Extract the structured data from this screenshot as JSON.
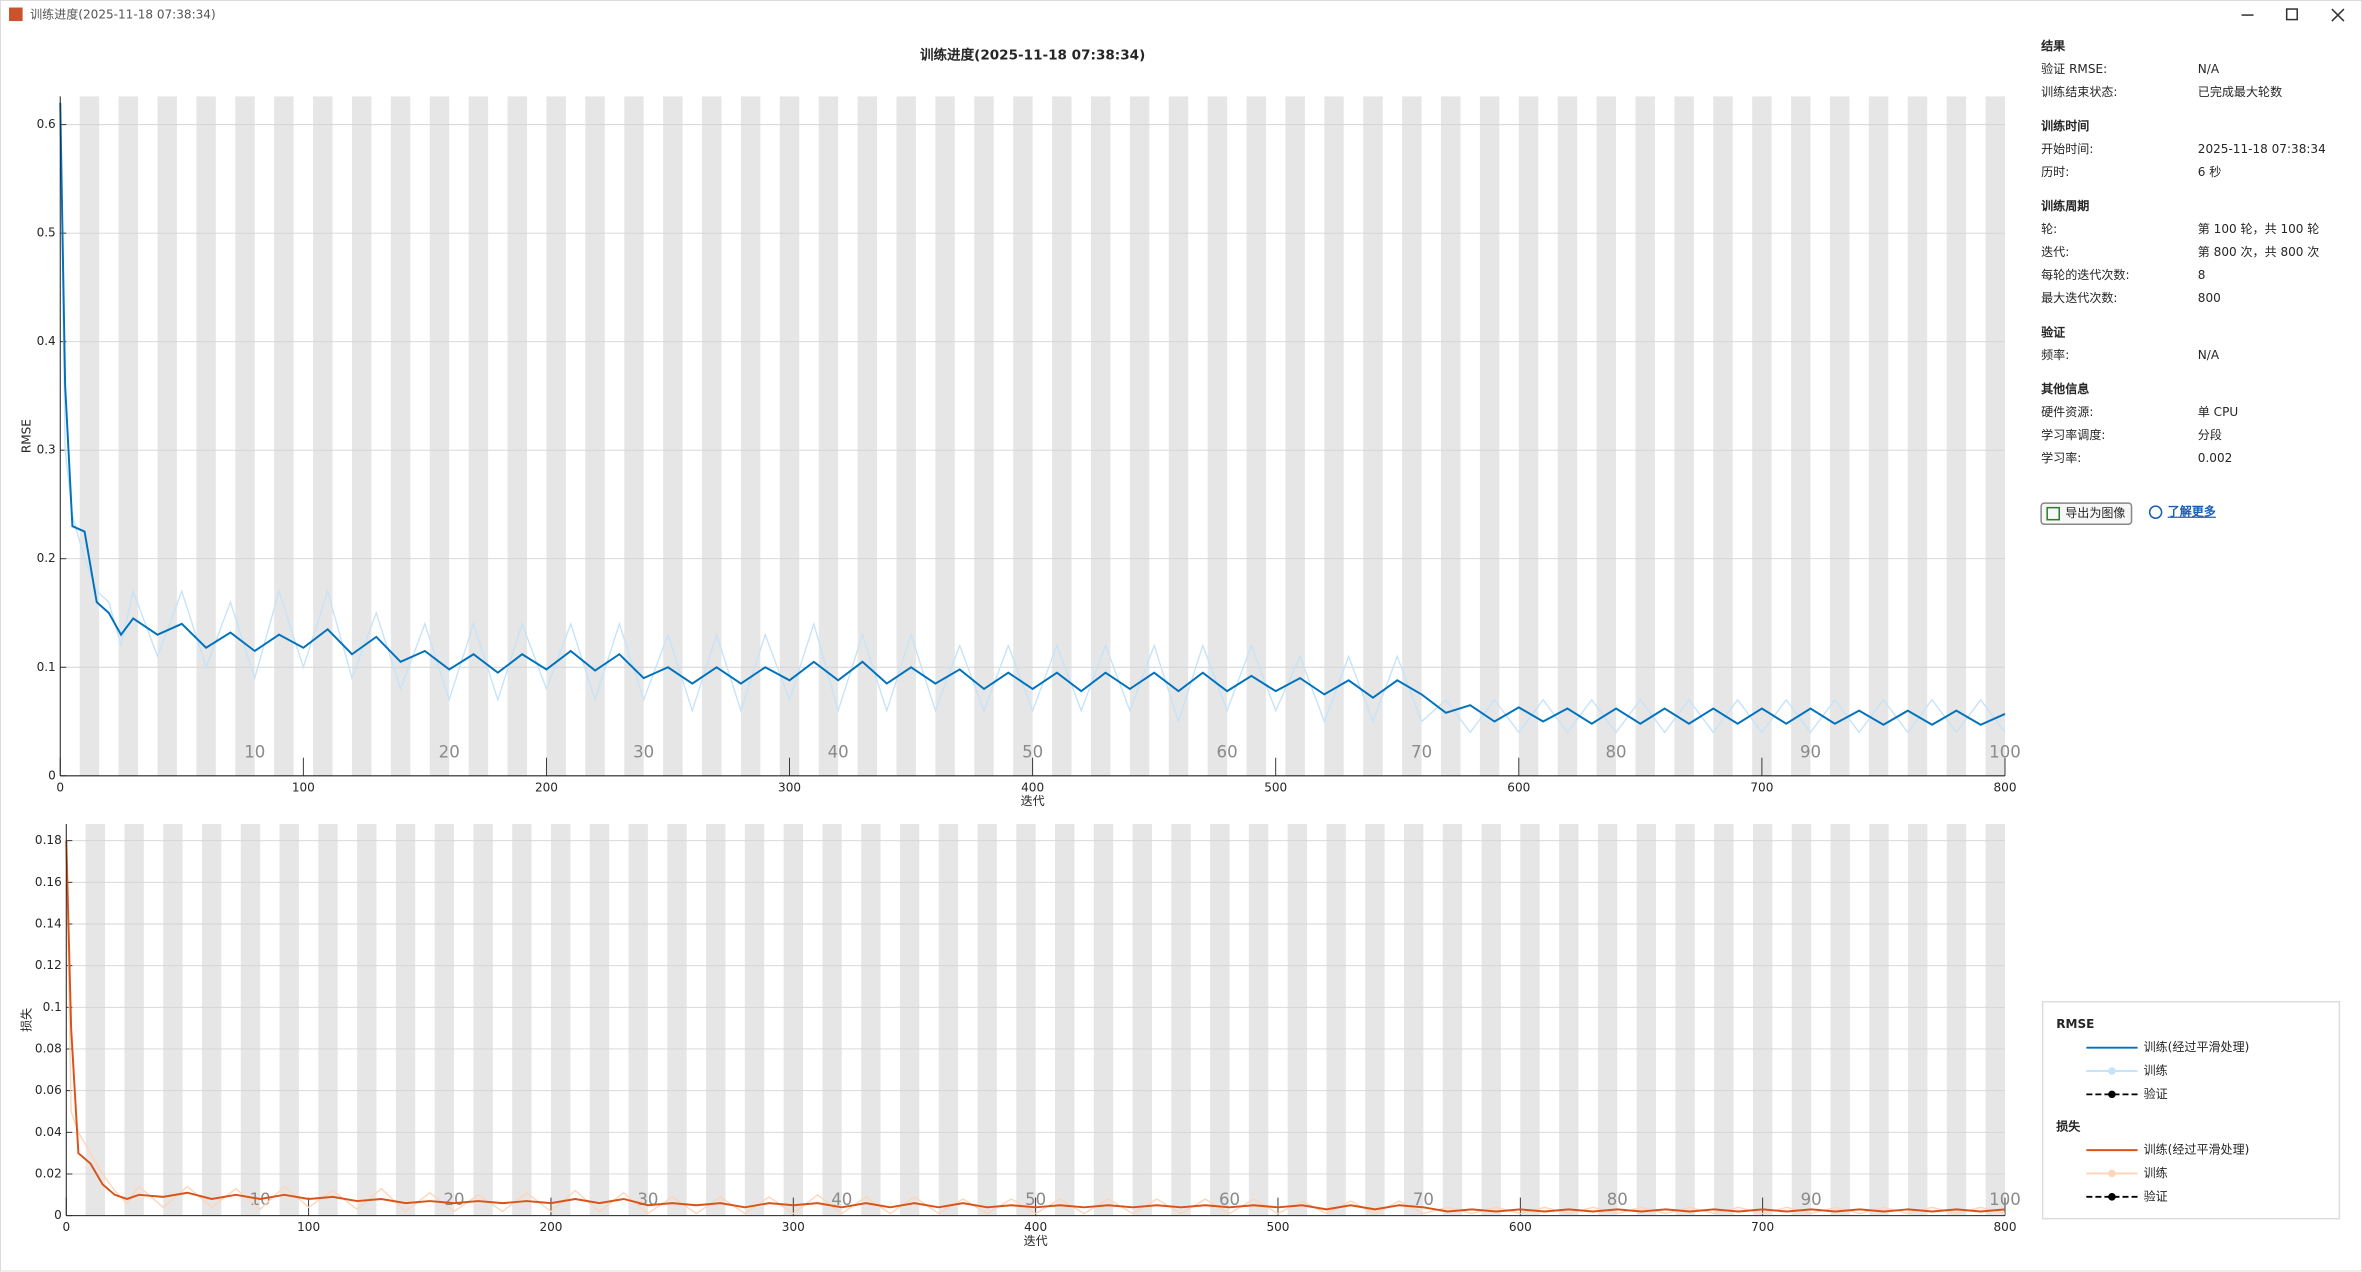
{
  "window": {
    "title": "训练进度(2025-11-18 07:38:34)"
  },
  "chart_data": [
    {
      "type": "line",
      "title": "训练进度(2025-11-18 07:38:34)",
      "y_label": "RMSE",
      "x_label": "迭代",
      "x": [
        0,
        2,
        5,
        10,
        15,
        20,
        25,
        30,
        40,
        50,
        60,
        70,
        80,
        90,
        100,
        110,
        120,
        130,
        140,
        150,
        160,
        170,
        180,
        190,
        200,
        210,
        220,
        230,
        240,
        250,
        260,
        270,
        280,
        290,
        300,
        310,
        320,
        330,
        340,
        350,
        360,
        370,
        380,
        390,
        400,
        410,
        420,
        430,
        440,
        450,
        460,
        470,
        480,
        490,
        500,
        510,
        520,
        530,
        540,
        550,
        560,
        570,
        580,
        590,
        600,
        610,
        620,
        630,
        640,
        650,
        660,
        670,
        680,
        690,
        700,
        710,
        720,
        730,
        740,
        750,
        760,
        770,
        780,
        790,
        800
      ],
      "series": [
        {
          "color": "#0072bd",
          "values": [
            0.62,
            0.36,
            0.23,
            0.225,
            0.16,
            0.15,
            0.13,
            0.145,
            0.13,
            0.14,
            0.118,
            0.132,
            0.115,
            0.13,
            0.118,
            0.135,
            0.112,
            0.128,
            0.105,
            0.115,
            0.098,
            0.112,
            0.095,
            0.112,
            0.098,
            0.115,
            0.097,
            0.112,
            0.09,
            0.1,
            0.085,
            0.1,
            0.085,
            0.1,
            0.088,
            0.105,
            0.088,
            0.105,
            0.085,
            0.1,
            0.085,
            0.098,
            0.08,
            0.095,
            0.08,
            0.095,
            0.078,
            0.095,
            0.08,
            0.095,
            0.078,
            0.095,
            0.078,
            0.092,
            0.078,
            0.09,
            0.075,
            0.088,
            0.072,
            0.088,
            0.075,
            0.058,
            0.065,
            0.05,
            0.063,
            0.05,
            0.062,
            0.048,
            0.062,
            0.048,
            0.062,
            0.048,
            0.062,
            0.048,
            0.062,
            0.048,
            0.062,
            0.048,
            0.06,
            0.047,
            0.06,
            0.047,
            0.06,
            0.047,
            0.057
          ]
        },
        {
          "color": "#c6e3f7",
          "values": [
            0.62,
            0.3,
            0.24,
            0.2,
            0.17,
            0.16,
            0.12,
            0.17,
            0.11,
            0.17,
            0.1,
            0.16,
            0.09,
            0.17,
            0.1,
            0.17,
            0.09,
            0.15,
            0.08,
            0.14,
            0.07,
            0.14,
            0.07,
            0.14,
            0.08,
            0.14,
            0.07,
            0.14,
            0.07,
            0.13,
            0.06,
            0.13,
            0.06,
            0.13,
            0.07,
            0.14,
            0.06,
            0.13,
            0.06,
            0.13,
            0.06,
            0.12,
            0.06,
            0.12,
            0.06,
            0.12,
            0.06,
            0.12,
            0.06,
            0.12,
            0.05,
            0.12,
            0.06,
            0.12,
            0.06,
            0.11,
            0.05,
            0.11,
            0.05,
            0.11,
            0.05,
            0.07,
            0.04,
            0.07,
            0.04,
            0.07,
            0.04,
            0.07,
            0.04,
            0.07,
            0.04,
            0.07,
            0.04,
            0.07,
            0.04,
            0.07,
            0.04,
            0.07,
            0.04,
            0.07,
            0.04,
            0.07,
            0.04,
            0.07,
            0.04
          ]
        }
      ],
      "xlim": [
        0,
        800
      ],
      "xticks": [
        0,
        100,
        200,
        300,
        400,
        500,
        600,
        700,
        800
      ],
      "ylim": [
        0,
        0.626
      ],
      "yticks": [
        0,
        0.1,
        0.2,
        0.3,
        0.4,
        0.5,
        0.6
      ],
      "grid": true,
      "epoch_ticks": [
        {
          "value": 80,
          "label": "10"
        },
        {
          "value": 160,
          "label": "20"
        },
        {
          "value": 240,
          "label": "30"
        },
        {
          "value": 320,
          "label": "40"
        },
        {
          "value": 400,
          "label": "50"
        },
        {
          "value": 480,
          "label": "60"
        },
        {
          "value": 560,
          "label": "70"
        },
        {
          "value": 640,
          "label": "80"
        },
        {
          "value": 720,
          "label": "90"
        },
        {
          "value": 800,
          "label": "100"
        }
      ]
    },
    {
      "type": "line",
      "y_label": "损失",
      "x_label": "迭代",
      "x": [
        0,
        2,
        5,
        10,
        15,
        20,
        25,
        30,
        40,
        50,
        60,
        70,
        80,
        90,
        100,
        110,
        120,
        130,
        140,
        150,
        160,
        170,
        180,
        190,
        200,
        210,
        220,
        230,
        240,
        250,
        260,
        270,
        280,
        290,
        300,
        310,
        320,
        330,
        340,
        350,
        360,
        370,
        380,
        390,
        400,
        410,
        420,
        430,
        440,
        450,
        460,
        470,
        480,
        490,
        500,
        510,
        520,
        530,
        540,
        550,
        560,
        570,
        580,
        590,
        600,
        610,
        620,
        630,
        640,
        650,
        660,
        670,
        680,
        690,
        700,
        710,
        720,
        730,
        740,
        750,
        760,
        770,
        780,
        790,
        800
      ],
      "series": [
        {
          "color": "#d95319",
          "values": [
            0.18,
            0.09,
            0.03,
            0.025,
            0.015,
            0.01,
            0.008,
            0.01,
            0.009,
            0.011,
            0.008,
            0.01,
            0.008,
            0.01,
            0.008,
            0.009,
            0.007,
            0.008,
            0.006,
            0.007,
            0.006,
            0.007,
            0.006,
            0.007,
            0.006,
            0.008,
            0.006,
            0.008,
            0.005,
            0.006,
            0.005,
            0.006,
            0.004,
            0.006,
            0.005,
            0.006,
            0.004,
            0.006,
            0.004,
            0.006,
            0.004,
            0.006,
            0.004,
            0.005,
            0.004,
            0.005,
            0.004,
            0.005,
            0.004,
            0.005,
            0.004,
            0.005,
            0.004,
            0.005,
            0.004,
            0.005,
            0.003,
            0.005,
            0.003,
            0.005,
            0.004,
            0.002,
            0.003,
            0.002,
            0.003,
            0.002,
            0.003,
            0.002,
            0.003,
            0.002,
            0.003,
            0.002,
            0.003,
            0.002,
            0.003,
            0.002,
            0.003,
            0.002,
            0.003,
            0.002,
            0.003,
            0.002,
            0.003,
            0.002,
            0.003
          ]
        },
        {
          "color": "#fdd5b8",
          "values": [
            0.18,
            0.05,
            0.04,
            0.03,
            0.02,
            0.012,
            0.006,
            0.014,
            0.004,
            0.014,
            0.004,
            0.013,
            0.003,
            0.014,
            0.004,
            0.012,
            0.003,
            0.013,
            0.002,
            0.011,
            0.002,
            0.01,
            0.002,
            0.011,
            0.002,
            0.012,
            0.002,
            0.011,
            0.001,
            0.009,
            0.001,
            0.009,
            0.001,
            0.009,
            0.001,
            0.01,
            0.001,
            0.009,
            0.001,
            0.009,
            0.001,
            0.008,
            0.001,
            0.008,
            0.001,
            0.008,
            0.001,
            0.008,
            0.001,
            0.008,
            0.001,
            0.008,
            0.001,
            0.008,
            0.001,
            0.007,
            0.001,
            0.007,
            0.001,
            0.007,
            0.001,
            0.004,
            0.001,
            0.004,
            0.001,
            0.004,
            0.001,
            0.004,
            0.001,
            0.004,
            0.001,
            0.004,
            0.001,
            0.004,
            0.001,
            0.004,
            0.001,
            0.004,
            0.001,
            0.004,
            0.001,
            0.004,
            0.001,
            0.004,
            0.001
          ]
        }
      ],
      "xlim": [
        0,
        800
      ],
      "xticks": [
        0,
        100,
        200,
        300,
        400,
        500,
        600,
        700,
        800
      ],
      "ylim": [
        0,
        0.188
      ],
      "yticks": [
        0,
        0.02,
        0.04,
        0.06,
        0.08,
        0.1,
        0.12,
        0.14,
        0.16,
        0.18
      ],
      "grid": true,
      "epoch_ticks": [
        {
          "value": 80,
          "label": "10"
        },
        {
          "value": 160,
          "label": "20"
        },
        {
          "value": 240,
          "label": "30"
        },
        {
          "value": 320,
          "label": "40"
        },
        {
          "value": 400,
          "label": "50"
        },
        {
          "value": 480,
          "label": "60"
        },
        {
          "value": 560,
          "label": "70"
        },
        {
          "value": 640,
          "label": "80"
        },
        {
          "value": 720,
          "label": "90"
        },
        {
          "value": 800,
          "label": "100"
        }
      ]
    }
  ],
  "info": {
    "sections": [
      {
        "title": "结果",
        "rows": [
          [
            "验证 RMSE:",
            "N/A"
          ],
          [
            "训练结束状态:",
            "已完成最大轮数"
          ]
        ]
      },
      {
        "title": "训练时间",
        "rows": [
          [
            "开始时间:",
            "2025-11-18 07:38:34"
          ],
          [
            "历时:",
            "6 秒"
          ]
        ]
      },
      {
        "title": "训练周期",
        "rows": [
          [
            "轮:",
            "第 100 轮，共 100 轮"
          ],
          [
            "迭代:",
            "第 800 次，共 800 次"
          ],
          [
            "每轮的迭代次数:",
            "8"
          ],
          [
            "最大迭代次数:",
            "800"
          ]
        ]
      },
      {
        "title": "验证",
        "rows": [
          [
            "频率:",
            "N/A"
          ]
        ]
      },
      {
        "title": "其他信息",
        "rows": [
          [
            "硬件资源:",
            "单 CPU"
          ],
          [
            "学习率调度:",
            "分段"
          ],
          [
            "学习率:",
            "0.002"
          ]
        ]
      }
    ],
    "export_button": "导出为图像",
    "learn_more": "了解更多"
  },
  "legend": [
    {
      "title": "RMSE",
      "items": [
        "训练(经过平滑处理)",
        "训练",
        "验证"
      ]
    },
    {
      "title": "损失",
      "items": [
        "训练(经过平滑处理)",
        "训练",
        "验证"
      ]
    }
  ]
}
